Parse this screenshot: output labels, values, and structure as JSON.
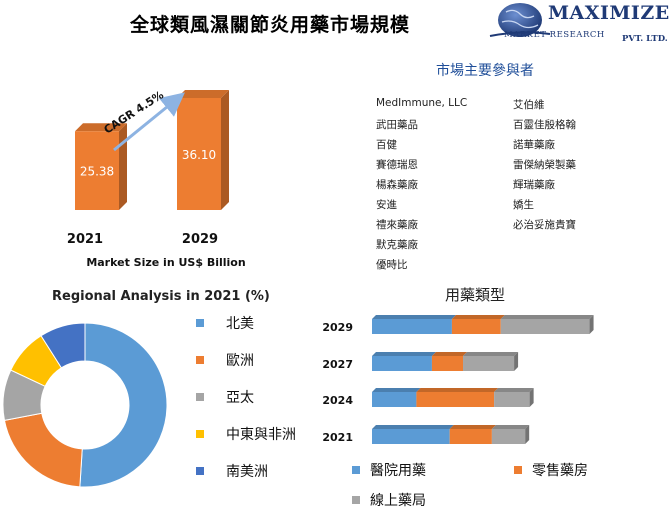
{
  "title": "全球類風濕關節炎用藥市場規模",
  "brand": {
    "name": "MAXIMIZE",
    "subtitle": "MARKET RESEARCH",
    "suffix": "PVT. LTD."
  },
  "players": {
    "title": "市場主要參與者",
    "left": [
      "MedImmune, LLC",
      "武田藥品",
      "百健",
      "賽德瑞恩",
      "楊森藥廠",
      "安進",
      "禮來藥廠",
      "默克藥廠",
      "優時比"
    ],
    "right": [
      "艾伯維",
      "百靈佳殷格翰",
      "諾華藥廠",
      "雷傑納榮製藥",
      "輝瑞藥廠",
      "嬌生",
      "必治妥施貴寶"
    ]
  },
  "colors": {
    "blue": "#5b9bd5",
    "orange": "#ed7d31",
    "gray": "#a5a5a5",
    "yellow": "#ffc000",
    "darkblue": "#4472c4",
    "arrow": "#8db3e2"
  },
  "chart_data": [
    {
      "type": "bar",
      "categories": [
        "2021",
        "2029"
      ],
      "values": [
        25.38,
        36.1
      ],
      "value_labels": [
        "25.38",
        "36.10"
      ],
      "annotation": "CAGR 4.5%",
      "xlabel": "Market Size in US$ Billion"
    },
    {
      "type": "pie",
      "title": "Regional Analysis in 2021 (%)",
      "labels": [
        "北美",
        "歐洲",
        "亞太",
        "中東與非洲",
        "南美洲"
      ],
      "values": [
        51,
        21,
        10,
        9,
        9
      ]
    },
    {
      "type": "bar",
      "orientation": "horizontal",
      "stacked": true,
      "title": "用藥類型",
      "categories": [
        "2029",
        "2027",
        "2024",
        "2021"
      ],
      "series": [
        {
          "name": "醫院用藥",
          "values": [
            36,
            27,
            20,
            35
          ]
        },
        {
          "name": "零售藥房",
          "values": [
            22,
            14,
            35,
            19
          ]
        },
        {
          "name": "線上藥局",
          "values": [
            40,
            23,
            16,
            15
          ]
        }
      ]
    }
  ]
}
